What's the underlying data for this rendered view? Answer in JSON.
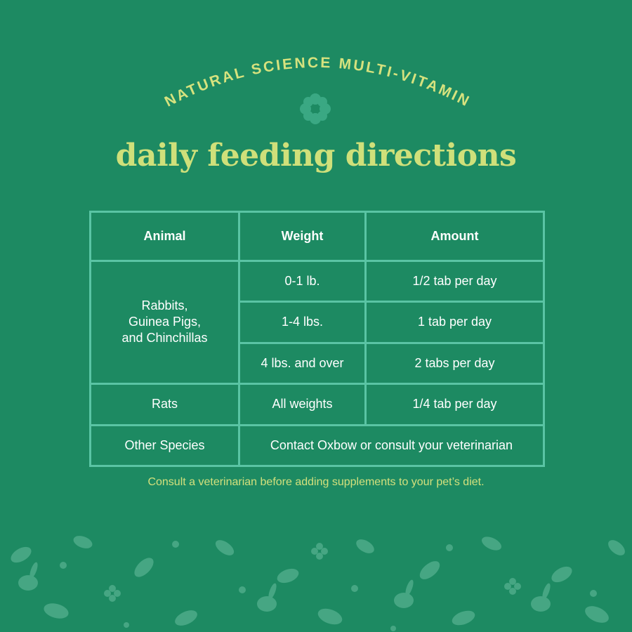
{
  "header": {
    "arc_text": "NATURAL SCIENCE MULTI-VITAMIN",
    "title": "daily feeding directions",
    "emblem_icon": "flower-icon"
  },
  "table": {
    "headers": [
      "Animal",
      "Weight",
      "Amount"
    ],
    "rows": {
      "rabbits": {
        "animal_line1": "Rabbits,",
        "animal_line2": "Guinea Pigs,",
        "animal_line3": "and Chinchillas",
        "tiers": [
          {
            "weight": "0-1 lb.",
            "amount": "1/2 tab per day"
          },
          {
            "weight": "1-4 lbs.",
            "amount": "1 tab per day"
          },
          {
            "weight": "4 lbs. and over",
            "amount": "2 tabs per day"
          }
        ]
      },
      "rats": {
        "animal": "Rats",
        "weight": "All weights",
        "amount": "1/4 tab per day"
      },
      "other": {
        "animal": "Other Species",
        "note": "Contact Oxbow or consult your veterinarian"
      }
    }
  },
  "footer_note": "Consult a veterinarian before adding supplements to your pet’s diet.",
  "colors": {
    "background": "#1d8a62",
    "title": "#cfe07a",
    "table_border": "#5ac4a4",
    "pattern": "#46a683"
  }
}
